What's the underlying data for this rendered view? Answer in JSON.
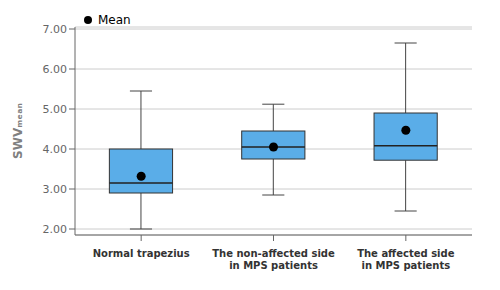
{
  "chart_data": {
    "type": "box",
    "categories": [
      "Normal trapezius",
      "The non-affected side\nin MPS patients",
      "The affected side\nin MPS patients"
    ],
    "boxes": [
      {
        "q1": 2.9,
        "median": 3.15,
        "q3": 4.0,
        "whisker_low": 2.0,
        "whisker_high": 5.45
      },
      {
        "q1": 3.75,
        "median": 4.05,
        "q3": 4.45,
        "whisker_low": 2.85,
        "whisker_high": 5.12
      },
      {
        "q1": 3.72,
        "median": 4.08,
        "q3": 4.9,
        "whisker_low": 2.45,
        "whisker_high": 6.65
      }
    ],
    "series": [
      {
        "name": "Mean",
        "type": "scatter",
        "marker": "circle",
        "color": "black",
        "values": [
          3.32,
          4.05,
          4.47
        ]
      }
    ],
    "color": "#5AADE8",
    "ylabel": "SWVₘₑₐₙ",
    "ylim": [
      1.85,
      7.05
    ],
    "yticks": [
      {
        "value": 2.0,
        "label": "2.00"
      },
      {
        "value": 3.0,
        "label": "3.00"
      },
      {
        "value": 4.0,
        "label": "4.00"
      },
      {
        "value": 5.0,
        "label": "5.00"
      },
      {
        "value": 6.0,
        "label": "6.00"
      },
      {
        "value": 7.0,
        "label": "7.00"
      }
    ],
    "grid": true,
    "legend": "upper left"
  }
}
